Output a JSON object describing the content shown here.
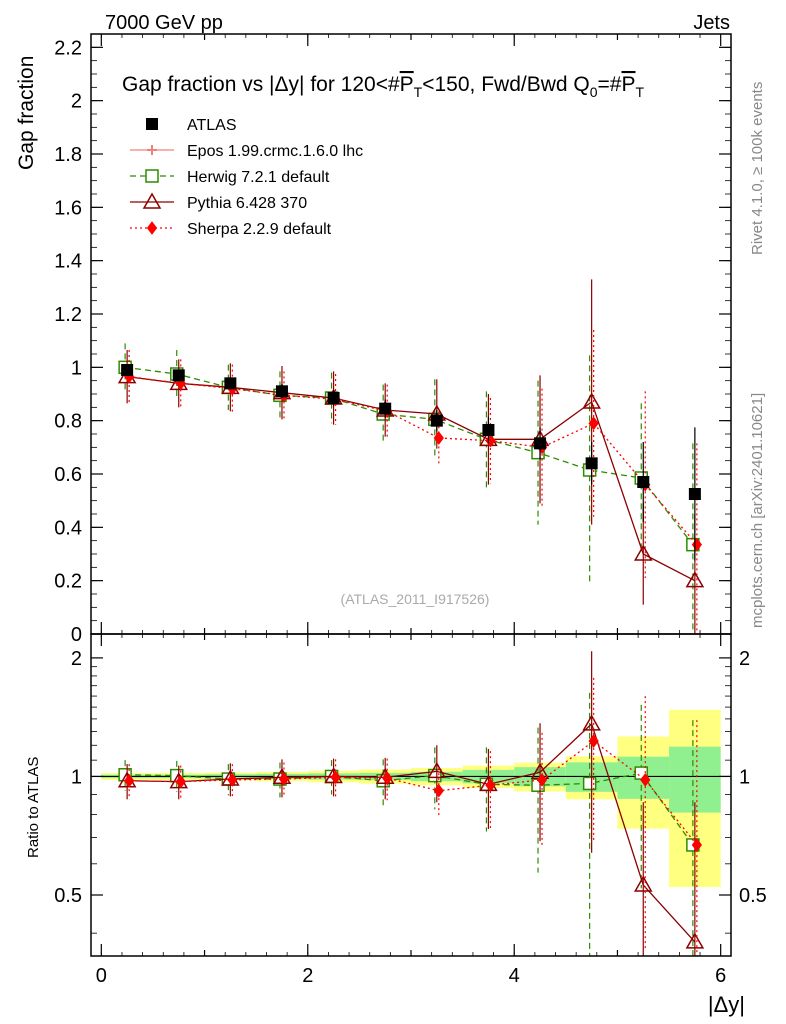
{
  "header": {
    "left": "7000 GeV pp",
    "right": "Jets"
  },
  "side_text": {
    "rivet": "Rivet 4.1.0, ≥ 100k events",
    "mcplots": "mcplots.cern.ch [arXiv:2401.10621]"
  },
  "reference": "(ATLAS_2011_I917526)",
  "chart_data": {
    "type": "scatter",
    "title": "Gap fraction vs |Δy| for 120<#P_T<150, Fwd/Bwd Q_0=#P_T",
    "title_parts": {
      "a": "Gap fraction vs |Δy| for 120<#",
      "p": "P",
      "t": "T",
      "b": "<150, Fwd/Bwd Q",
      "z": "0",
      "c": "=#",
      "p2": "P",
      "t2": "T"
    },
    "xlabel": "|Δy|",
    "ylabel": "Gap fraction",
    "ratio_ylabel": "Ratio to ATLAS",
    "xlim": [
      -0.1,
      6.1
    ],
    "ylim": [
      0,
      2.25
    ],
    "ratio_ylim": [
      0.35,
      2.3
    ],
    "x_ticks": [
      "0",
      "2",
      "4",
      "6"
    ],
    "y_ticks": [
      "0",
      "0.2",
      "0.4",
      "0.6",
      "0.8",
      "1",
      "1.2",
      "1.4",
      "1.6",
      "1.8",
      "2",
      "2.2"
    ],
    "ratio_ticks": [
      "0.5",
      "1",
      "2"
    ],
    "x": [
      0.25,
      0.75,
      1.25,
      1.75,
      2.25,
      2.75,
      3.25,
      3.75,
      4.25,
      4.75,
      5.25,
      5.75
    ],
    "atlas": {
      "name": "ATLAS",
      "values": [
        0.99,
        0.97,
        0.94,
        0.91,
        0.885,
        0.845,
        0.8,
        0.765,
        0.715,
        0.64,
        0.57,
        0.525
      ],
      "band_inner": [
        0.01,
        0.01,
        0.012,
        0.014,
        0.016,
        0.018,
        0.022,
        0.03,
        0.04,
        0.055,
        0.07,
        0.1
      ],
      "band_outer": [
        0.02,
        0.02,
        0.022,
        0.025,
        0.03,
        0.035,
        0.04,
        0.05,
        0.06,
        0.08,
        0.15,
        0.25
      ]
    },
    "series": [
      {
        "name": "Epos 1.99.crmc.1.6.0 lhc",
        "color": "#f08080",
        "marker": "cross",
        "dash": "",
        "values": [],
        "errors": []
      },
      {
        "name": "Herwig 7.2.1 default",
        "color": "#2e8b00",
        "marker": "square",
        "dash": "6,4",
        "values": [
          1.0,
          0.975,
          0.925,
          0.895,
          0.885,
          0.825,
          0.805,
          0.73,
          0.68,
          0.615,
          0.585,
          0.335
        ],
        "errors": [
          0.09,
          0.09,
          0.085,
          0.09,
          0.095,
          0.11,
          0.15,
          0.18,
          0.27,
          0.43,
          0.28,
          0.38
        ],
        "ratio": [
          1.01,
          1.005,
          0.985,
          0.985,
          1.0,
          0.975,
          1.005,
          0.955,
          0.95,
          0.96,
          1.02,
          0.67
        ],
        "ratio_err": [
          0.09,
          0.09,
          0.09,
          0.1,
          0.1,
          0.13,
          0.18,
          0.23,
          0.38,
          0.67,
          0.5,
          0.72
        ]
      },
      {
        "name": "Pythia 6.428 370",
        "color": "#8b0000",
        "marker": "triangle",
        "dash": "",
        "values": [
          0.965,
          0.94,
          0.925,
          0.905,
          0.885,
          0.84,
          0.825,
          0.73,
          0.73,
          0.87,
          0.3,
          0.2
        ],
        "errors": [
          0.1,
          0.09,
          0.09,
          0.1,
          0.1,
          0.1,
          0.13,
          0.17,
          0.24,
          0.46,
          0.19,
          0.25
        ],
        "ratio": [
          0.975,
          0.97,
          0.985,
          0.995,
          1.0,
          0.995,
          1.03,
          0.955,
          1.025,
          1.36,
          0.53,
          0.38
        ],
        "ratio_err": [
          0.1,
          0.095,
          0.095,
          0.11,
          0.11,
          0.12,
          0.17,
          0.22,
          0.34,
          0.72,
          0.33,
          0.48
        ]
      },
      {
        "name": "Sherpa 2.2.9 default",
        "color": "#ff0000",
        "marker": "diamond",
        "dash": "2,3",
        "values": [
          0.965,
          0.94,
          0.92,
          0.895,
          0.88,
          0.835,
          0.735,
          0.725,
          0.7,
          0.79,
          0.56,
          0.335
        ],
        "errors": [
          0.1,
          0.09,
          0.09,
          0.09,
          0.095,
          0.1,
          0.1,
          0.16,
          0.22,
          0.35,
          0.35,
          0.38
        ],
        "ratio": [
          0.975,
          0.97,
          0.98,
          0.985,
          0.995,
          0.99,
          0.92,
          0.95,
          0.98,
          1.23,
          0.98,
          0.67
        ],
        "ratio_err": [
          0.1,
          0.095,
          0.095,
          0.1,
          0.11,
          0.12,
          0.13,
          0.21,
          0.31,
          0.55,
          0.62,
          0.72
        ]
      }
    ]
  }
}
